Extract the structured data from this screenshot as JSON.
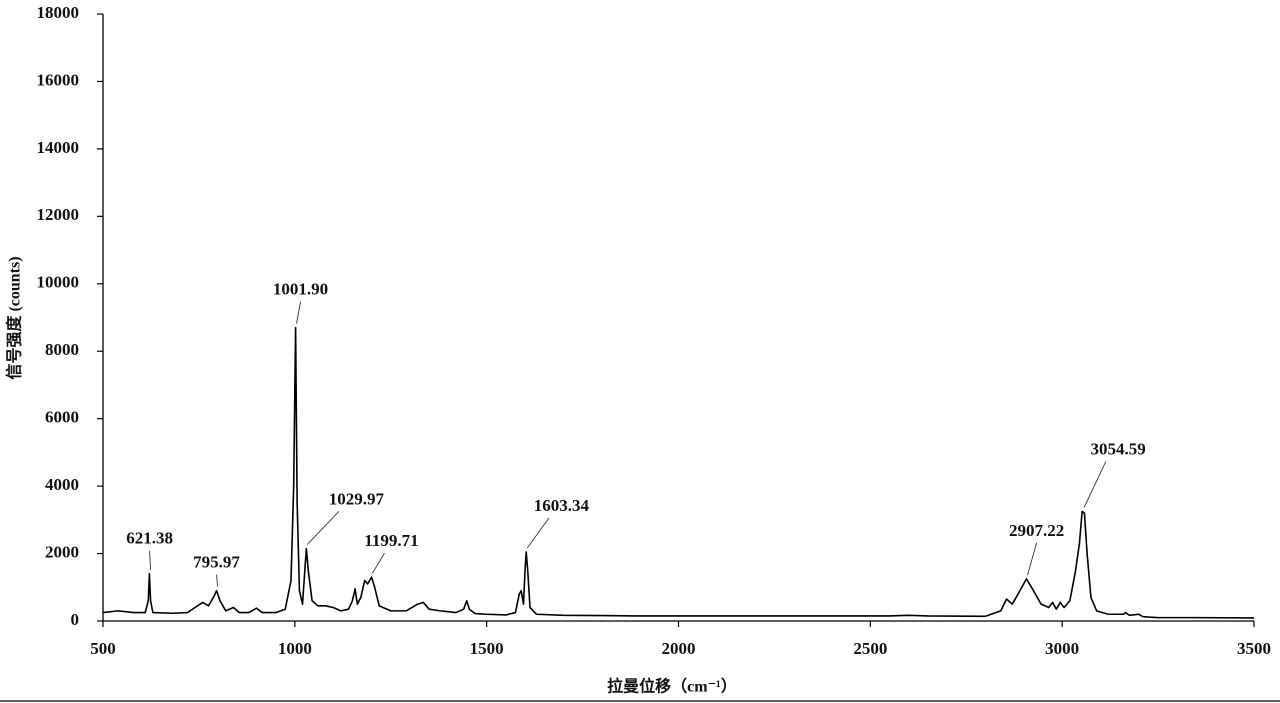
{
  "chart_data": {
    "type": "line",
    "x_label": "拉曼位移（cm⁻¹）",
    "y_label": "信号强度 (counts)",
    "xlim": [
      500,
      3500
    ],
    "xticks": [
      500,
      1000,
      1500,
      2000,
      2500,
      3000,
      3500
    ],
    "ylim": [
      0,
      18000
    ],
    "yticks": [
      0,
      2000,
      4000,
      6000,
      8000,
      10000,
      12000,
      14000,
      16000,
      18000
    ],
    "color": "#000000",
    "x": [
      500,
      540,
      580,
      610,
      618,
      621,
      624,
      630,
      680,
      720,
      740,
      760,
      775,
      790,
      796,
      805,
      820,
      840,
      855,
      880,
      900,
      915,
      950,
      975,
      990,
      997,
      1002,
      1006,
      1012,
      1020,
      1026,
      1030,
      1035,
      1045,
      1060,
      1080,
      1100,
      1120,
      1140,
      1150,
      1157,
      1163,
      1172,
      1182,
      1190,
      1200,
      1208,
      1220,
      1250,
      1290,
      1320,
      1335,
      1350,
      1380,
      1420,
      1440,
      1448,
      1455,
      1470,
      1500,
      1550,
      1575,
      1585,
      1590,
      1596,
      1600,
      1603,
      1607,
      1613,
      1630,
      1700,
      1800,
      1900,
      2000,
      2200,
      2400,
      2550,
      2600,
      2650,
      2800,
      2840,
      2855,
      2870,
      2890,
      2907,
      2920,
      2945,
      2965,
      2975,
      2985,
      2995,
      3005,
      3020,
      3035,
      3045,
      3052,
      3058,
      3065,
      3075,
      3090,
      3120,
      3160,
      3165,
      3175,
      3200,
      3210,
      3250,
      3350,
      3500
    ],
    "values": [
      250,
      300,
      250,
      250,
      600,
      1400,
      600,
      250,
      230,
      250,
      400,
      550,
      450,
      750,
      900,
      600,
      300,
      400,
      250,
      250,
      380,
      250,
      250,
      350,
      1200,
      4000,
      8700,
      3500,
      900,
      500,
      1500,
      2150,
      1500,
      600,
      450,
      450,
      400,
      300,
      350,
      600,
      950,
      500,
      700,
      1200,
      1100,
      1300,
      1000,
      450,
      300,
      300,
      500,
      550,
      350,
      300,
      250,
      350,
      600,
      350,
      220,
      200,
      180,
      250,
      800,
      900,
      500,
      1500,
      2050,
      1500,
      400,
      200,
      170,
      160,
      150,
      150,
      150,
      150,
      150,
      170,
      150,
      140,
      300,
      650,
      500,
      900,
      1250,
      1000,
      500,
      400,
      550,
      350,
      550,
      400,
      600,
      1500,
      2300,
      3250,
      3200,
      2000,
      700,
      300,
      200,
      200,
      250,
      170,
      200,
      130,
      100,
      100,
      90
    ],
    "annotations": [
      {
        "label": "621.38",
        "x": 621.38,
        "y": 1400
      },
      {
        "label": "795.97",
        "x": 795.97,
        "y": 900
      },
      {
        "label": "1001.90",
        "x": 1001.9,
        "y": 8700
      },
      {
        "label": "1029.97",
        "x": 1029.97,
        "y": 2150
      },
      {
        "label": "1199.71",
        "x": 1199.71,
        "y": 1300
      },
      {
        "label": "1603.34",
        "x": 1603.34,
        "y": 2050
      },
      {
        "label": "2907.22",
        "x": 2907.22,
        "y": 1250
      },
      {
        "label": "3054.59",
        "x": 3054.59,
        "y": 3250
      }
    ]
  }
}
